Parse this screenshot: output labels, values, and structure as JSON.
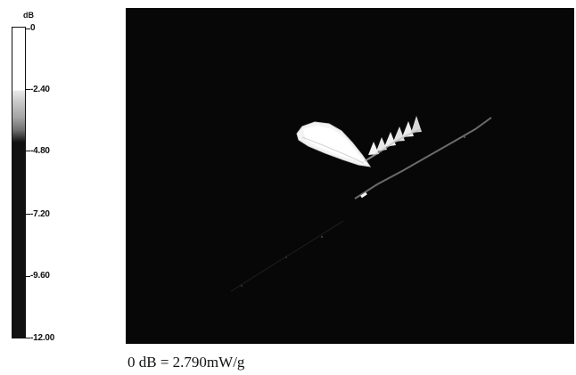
{
  "colorbar": {
    "unit": "dB",
    "ticks": [
      "0",
      "-2.40",
      "-4.80",
      "-7.20",
      "-9.60",
      "-12.00"
    ],
    "range_db": [
      -12.0,
      0
    ],
    "colors": {
      "high": "#ffffff",
      "mid": "#a4a4a4",
      "low": "#111111"
    }
  },
  "plot": {
    "background": "#070707"
  },
  "caption": "0 dB = 2.790mW/g"
}
